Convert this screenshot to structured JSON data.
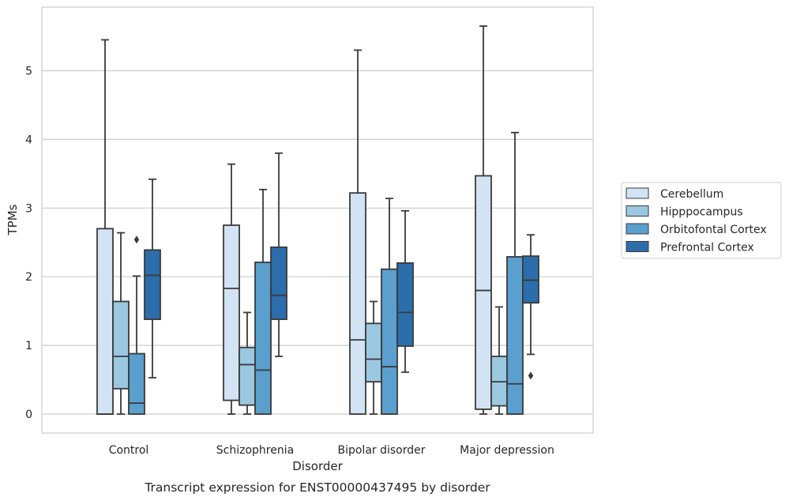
{
  "chart_data": {
    "type": "box",
    "title": "",
    "caption": "Transcript expression for ENST00000437495 by disorder",
    "xlabel": "Disorder",
    "ylabel": "TPMs",
    "ylim": [
      -0.27,
      5.87
    ],
    "yticks": [
      0,
      1,
      2,
      3,
      4,
      5
    ],
    "grid": true,
    "legend_position": "right",
    "categories": [
      "Control",
      "Schizophrenia",
      "Bipolar disorder",
      "Major depression"
    ],
    "series": [
      {
        "name": "Cerebellum",
        "color": "#d2e3f3",
        "boxes": [
          {
            "whislo": 0.0,
            "q1": 0.0,
            "med": 0.0,
            "q3": 2.7,
            "whishi": 5.45,
            "fliers": []
          },
          {
            "whislo": 0.0,
            "q1": 0.2,
            "med": 1.83,
            "q3": 2.75,
            "whishi": 3.64,
            "fliers": []
          },
          {
            "whislo": 0.0,
            "q1": 0.0,
            "med": 1.08,
            "q3": 3.22,
            "whishi": 5.3,
            "fliers": []
          },
          {
            "whislo": 0.0,
            "q1": 0.07,
            "med": 1.8,
            "q3": 3.47,
            "whishi": 5.65,
            "fliers": []
          }
        ]
      },
      {
        "name": "Hipppocampus",
        "color": "#9ac8e0",
        "boxes": [
          {
            "whislo": 0.0,
            "q1": 0.37,
            "med": 0.84,
            "q3": 1.64,
            "whishi": 2.64,
            "fliers": []
          },
          {
            "whislo": 0.0,
            "q1": 0.13,
            "med": 0.72,
            "q3": 0.97,
            "whishi": 1.48,
            "fliers": []
          },
          {
            "whislo": 0.0,
            "q1": 0.47,
            "med": 0.8,
            "q3": 1.32,
            "whishi": 1.64,
            "fliers": []
          },
          {
            "whislo": 0.0,
            "q1": 0.12,
            "med": 0.47,
            "q3": 0.84,
            "whishi": 1.56,
            "fliers": []
          }
        ]
      },
      {
        "name": "Orbitofontal Cortex",
        "color": "#5a9fcd",
        "boxes": [
          {
            "whislo": 0.0,
            "q1": 0.0,
            "med": 0.16,
            "q3": 0.88,
            "whishi": 2.01,
            "fliers": [
              2.54
            ]
          },
          {
            "whislo": 0.0,
            "q1": 0.0,
            "med": 0.64,
            "q3": 2.21,
            "whishi": 3.27,
            "fliers": []
          },
          {
            "whislo": 0.0,
            "q1": 0.0,
            "med": 0.69,
            "q3": 2.11,
            "whishi": 3.14,
            "fliers": []
          },
          {
            "whislo": 0.0,
            "q1": 0.0,
            "med": 0.44,
            "q3": 2.29,
            "whishi": 4.1,
            "fliers": []
          }
        ]
      },
      {
        "name": "Prefrontal Cortex",
        "color": "#2c6eac",
        "boxes": [
          {
            "whislo": 0.53,
            "q1": 1.38,
            "med": 2.02,
            "q3": 2.39,
            "whishi": 3.42,
            "fliers": []
          },
          {
            "whislo": 0.84,
            "q1": 1.38,
            "med": 1.73,
            "q3": 2.43,
            "whishi": 3.8,
            "fliers": []
          },
          {
            "whislo": 0.61,
            "q1": 0.99,
            "med": 1.48,
            "q3": 2.2,
            "whishi": 2.96,
            "fliers": []
          },
          {
            "whislo": 0.87,
            "q1": 1.62,
            "med": 1.95,
            "q3": 2.3,
            "whishi": 2.61,
            "fliers": [
              0.56
            ]
          }
        ]
      }
    ]
  },
  "colors": {
    "line": "#3a3a3a",
    "grid": "#cccccc",
    "frame": "#cccccc"
  }
}
